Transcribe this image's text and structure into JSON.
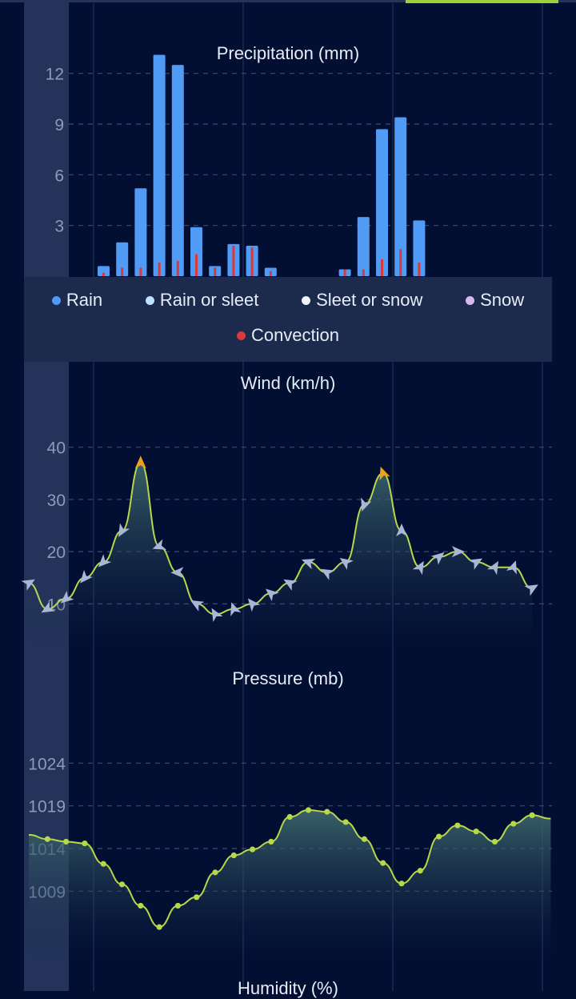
{
  "chart_data": [
    {
      "type": "bar",
      "title": "Precipitation (mm)",
      "yticks": [
        "3",
        "6",
        "9",
        "12"
      ],
      "ylim": [
        0,
        13.5
      ],
      "grid": true,
      "legend": {
        "placement": "bottom",
        "entries": [
          {
            "label": "Rain",
            "color": "#4f9bf5"
          },
          {
            "label": "Rain or sleet",
            "color": "#bfe0ff"
          },
          {
            "label": "Sleet or snow",
            "color": "#f2f4fa"
          },
          {
            "label": "Snow",
            "color": "#d9b8f2"
          },
          {
            "label": "Convection",
            "color": "#d63a3a"
          }
        ]
      },
      "series": [
        {
          "name": "Rain",
          "values": [
            0.6,
            2.0,
            5.2,
            13.1,
            12.5,
            2.9,
            0.6,
            1.9,
            1.8,
            0.5,
            0,
            0,
            0,
            0.4,
            3.5,
            8.7,
            9.4,
            3.3
          ]
        },
        {
          "name": "Convection",
          "values": [
            0.2,
            0.5,
            0.5,
            0.8,
            0.9,
            1.3,
            0.5,
            1.8,
            1.7,
            0.3,
            0,
            0,
            0,
            0.4,
            0.4,
            1.0,
            1.6,
            0.8
          ]
        }
      ]
    },
    {
      "type": "line",
      "title": "Wind (km/h)",
      "yticks": [
        "10",
        "20",
        "30",
        "40"
      ],
      "ylim": [
        3,
        49
      ],
      "grid": true,
      "values": [
        14,
        9,
        11,
        15,
        18,
        24,
        37,
        21,
        16,
        10,
        8,
        9,
        10,
        12,
        14,
        18,
        16,
        18,
        29,
        35,
        24,
        17,
        19,
        20,
        18,
        17,
        17,
        13
      ]
    },
    {
      "type": "area",
      "title": "Pressure (mb)",
      "yticks": [
        "1009",
        "1014",
        "1019",
        "1024"
      ],
      "ylim": [
        1002,
        1029
      ],
      "grid": true,
      "values": [
        1015.6,
        1015.1,
        1014.8,
        1014.6,
        1012.2,
        1009.8,
        1007.3,
        1004.8,
        1007.3,
        1008.3,
        1011.2,
        1013.2,
        1013.9,
        1014.8,
        1017.7,
        1018.5,
        1018.3,
        1017.1,
        1015.1,
        1012.3,
        1009.9,
        1011.4,
        1015.4,
        1016.7,
        1016.0,
        1014.8,
        1016.9,
        1017.9,
        1017.5
      ]
    }
  ],
  "next_section_title": "Humidity (%)"
}
